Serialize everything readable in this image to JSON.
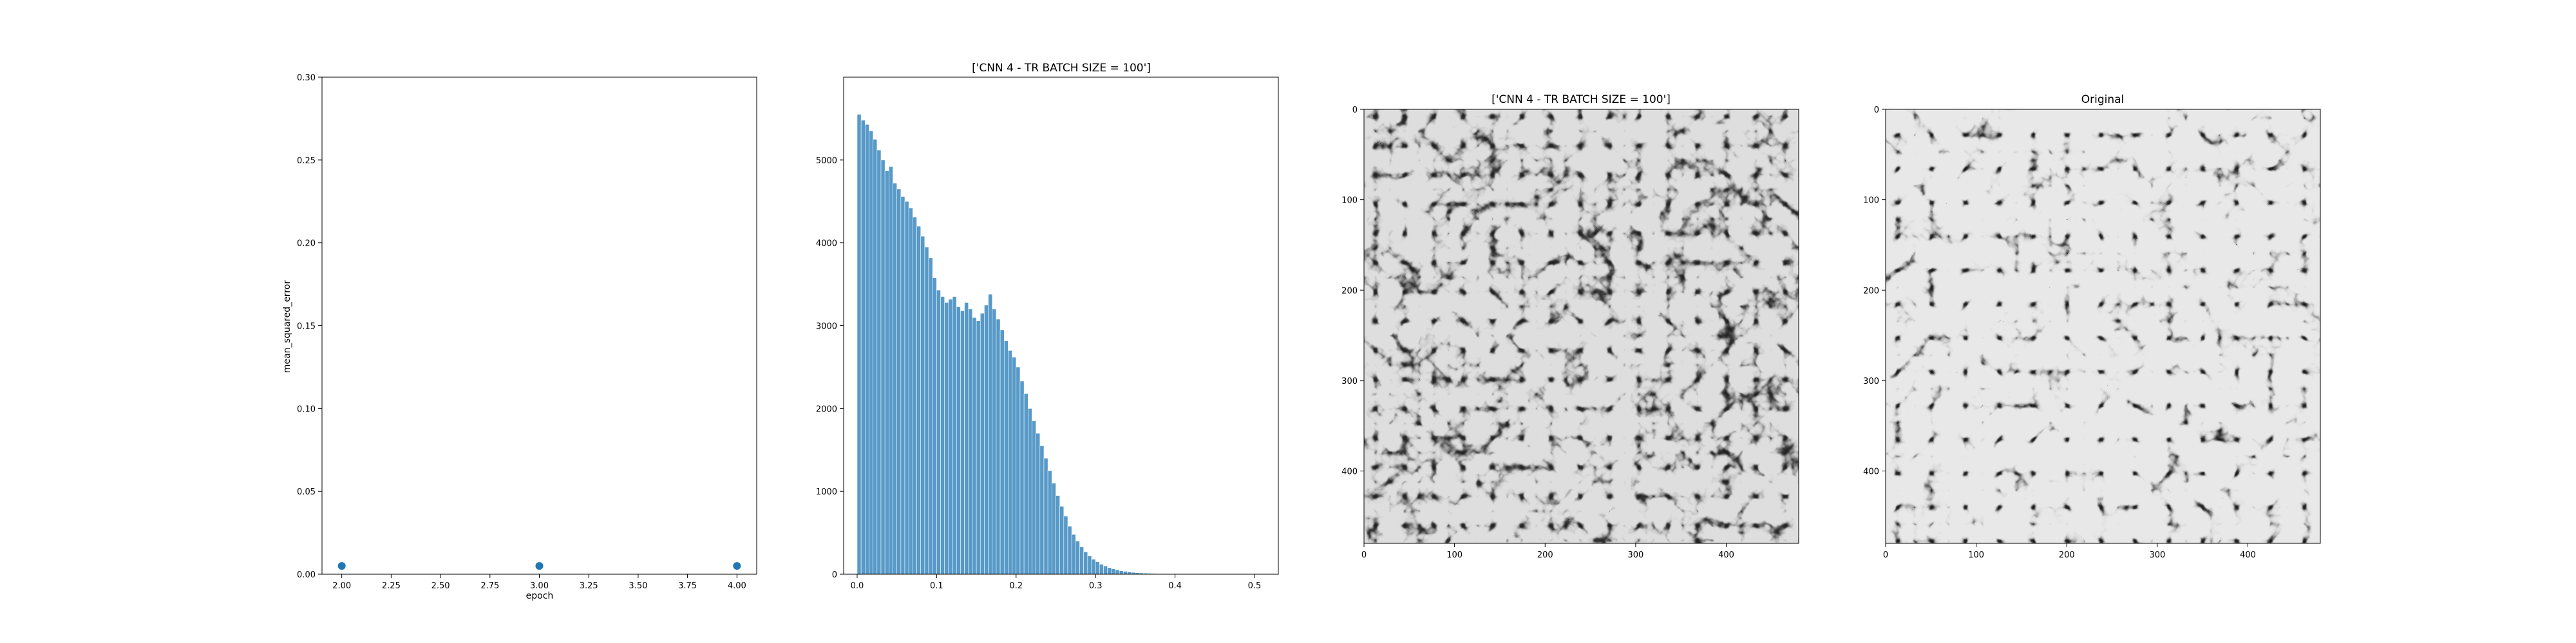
{
  "chart_data": [
    {
      "type": "scatter",
      "title": "",
      "xlabel": "epoch",
      "ylabel": "mean_squared_error",
      "xlim": [
        1.9,
        4.1
      ],
      "ylim": [
        0.0,
        0.3
      ],
      "x_ticks": [
        "2.00",
        "2.25",
        "2.50",
        "2.75",
        "3.00",
        "3.25",
        "3.50",
        "3.75",
        "4.00"
      ],
      "y_ticks": [
        "0.00",
        "0.05",
        "0.10",
        "0.15",
        "0.20",
        "0.25",
        "0.30"
      ],
      "x": [
        2,
        3,
        4
      ],
      "y": [
        0.005,
        0.005,
        0.005
      ],
      "color": "#1f77b4"
    },
    {
      "type": "bar",
      "title": "['CNN 4 - TR BATCH SIZE = 100']",
      "xlabel": "",
      "ylabel": "",
      "xlim": [
        -0.017,
        0.53
      ],
      "ylim": [
        0,
        6000
      ],
      "x_ticks": [
        "0.0",
        "0.1",
        "0.2",
        "0.3",
        "0.4",
        "0.5"
      ],
      "y_ticks": [
        "0",
        "1000",
        "2000",
        "3000",
        "4000",
        "5000"
      ],
      "bin_width": 0.005,
      "bin_start": 0.0,
      "values": [
        5550,
        5480,
        5430,
        5350,
        5250,
        5120,
        5000,
        4870,
        4920,
        4720,
        4650,
        4560,
        4500,
        4420,
        4310,
        4200,
        4080,
        3950,
        3820,
        3580,
        3430,
        3350,
        3280,
        3320,
        3350,
        3230,
        3180,
        3280,
        3200,
        3100,
        3060,
        3150,
        3250,
        3380,
        3200,
        3080,
        2950,
        2820,
        2700,
        2620,
        2500,
        2330,
        2180,
        2000,
        1850,
        1700,
        1550,
        1400,
        1250,
        1100,
        950,
        820,
        700,
        580,
        480,
        400,
        330,
        270,
        220,
        180,
        150,
        120,
        100,
        80,
        65,
        52,
        42,
        35,
        28,
        22,
        18,
        15,
        12,
        10,
        8,
        7,
        6,
        5,
        4,
        4,
        3,
        3,
        2,
        2,
        2,
        1,
        1,
        1,
        1,
        1,
        1,
        1,
        1,
        1,
        1,
        0,
        0,
        0,
        0,
        0
      ],
      "color": "#1f77b4"
    },
    {
      "type": "image",
      "title": "['CNN 4 - TR BATCH SIZE = 100']",
      "x_ticks": [
        "0",
        "100",
        "200",
        "300",
        "400"
      ],
      "y_ticks": [
        "0",
        "100",
        "200",
        "300",
        "400"
      ],
      "extent": [
        0,
        480
      ],
      "colormap": "gray"
    },
    {
      "type": "image",
      "title": "Original",
      "x_ticks": [
        "0",
        "100",
        "200",
        "300",
        "400"
      ],
      "y_ticks": [
        "0",
        "100",
        "200",
        "300",
        "400"
      ],
      "extent": [
        0,
        480
      ],
      "colormap": "gray"
    }
  ]
}
